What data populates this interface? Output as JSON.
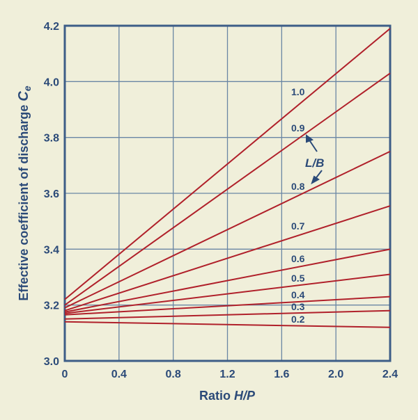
{
  "chart_data": {
    "type": "line",
    "xlabel_prefix": "Ratio ",
    "xlabel_italic": "H/P",
    "ylabel_prefix": "Effective coefficient of discharge ",
    "ylabel_symbol": "C",
    "ylabel_subscript": "e",
    "xlim": [
      0,
      2.4
    ],
    "ylim": [
      3.0,
      4.2
    ],
    "xticks": [
      "0",
      "0.4",
      "0.8",
      "1.2",
      "1.6",
      "2.0",
      "2.4"
    ],
    "yticks": [
      "3.0",
      "3.2",
      "3.4",
      "3.6",
      "3.8",
      "4.0",
      "4.2"
    ],
    "grid": true,
    "legend_title": "L/B",
    "series": [
      {
        "name": "1.0",
        "x": [
          0,
          2.4
        ],
        "y": [
          3.22,
          4.19
        ]
      },
      {
        "name": "0.9",
        "x": [
          0,
          2.4
        ],
        "y": [
          3.2,
          4.03
        ]
      },
      {
        "name": "0.8",
        "x": [
          0,
          2.4
        ],
        "y": [
          3.19,
          3.75
        ]
      },
      {
        "name": "0.7",
        "x": [
          0,
          2.4
        ],
        "y": [
          3.18,
          3.555
        ]
      },
      {
        "name": "0.6",
        "x": [
          0,
          2.4
        ],
        "y": [
          3.175,
          3.4
        ]
      },
      {
        "name": "0.5",
        "x": [
          0,
          2.4
        ],
        "y": [
          3.17,
          3.31
        ]
      },
      {
        "name": "0.4",
        "x": [
          0,
          2.4
        ],
        "y": [
          3.165,
          3.23
        ]
      },
      {
        "name": "0.3",
        "x": [
          0,
          2.4
        ],
        "y": [
          3.15,
          3.18
        ]
      },
      {
        "name": "0.2",
        "x": [
          0,
          2.4
        ],
        "y": [
          3.14,
          3.12
        ]
      }
    ],
    "colors": {
      "background": "#f0efda",
      "line": "#b0202a",
      "grid": "#6a86a4",
      "text": "#2b4a78"
    }
  }
}
